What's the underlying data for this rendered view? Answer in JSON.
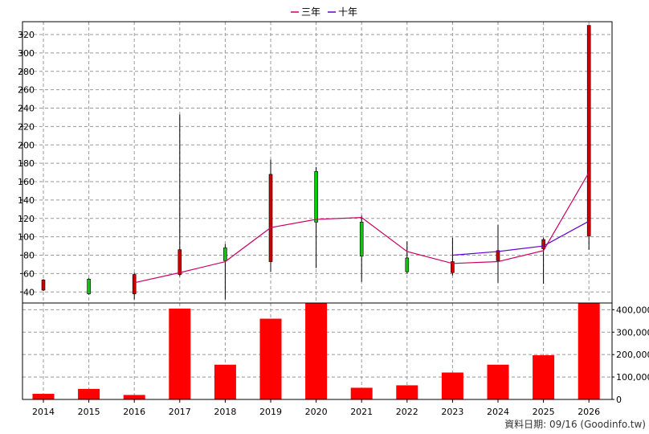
{
  "legend": [
    {
      "label": "三年",
      "color": "#cc0066"
    },
    {
      "label": "十年",
      "color": "#6600cc"
    }
  ],
  "footer": "資料日期: 09/16  (Goodinfo.tw)",
  "chart_data": [
    {
      "type": "candlestick",
      "position": "top",
      "x": [
        "2014",
        "2015",
        "2016",
        "2017",
        "2018",
        "2019",
        "2020",
        "2021",
        "2022",
        "2023",
        "2024",
        "2025",
        "2026"
      ],
      "ohlc": [
        {
          "open": 42,
          "high": 54,
          "low": 41,
          "close": 53,
          "color": "#cc0000"
        },
        {
          "open": 54,
          "high": 55,
          "low": 37,
          "close": 38,
          "color": "#00cc00"
        },
        {
          "open": 38,
          "high": 61,
          "low": 32,
          "close": 59,
          "color": "#cc0000"
        },
        {
          "open": 59,
          "high": 233,
          "low": 57,
          "close": 86,
          "color": "#cc0000"
        },
        {
          "open": 88,
          "high": 92,
          "low": 32,
          "close": 74,
          "color": "#00cc00"
        },
        {
          "open": 73,
          "high": 184,
          "low": 62,
          "close": 168,
          "color": "#cc0000"
        },
        {
          "open": 171,
          "high": 176,
          "low": 66,
          "close": 116,
          "color": "#00cc00"
        },
        {
          "open": 116,
          "high": 123,
          "low": 51,
          "close": 79,
          "color": "#00cc00"
        },
        {
          "open": 77,
          "high": 95,
          "low": 60,
          "close": 62,
          "color": "#00cc00"
        },
        {
          "open": 61,
          "high": 99,
          "low": 58,
          "close": 73,
          "color": "#cc0000"
        },
        {
          "open": 74,
          "high": 113,
          "low": 50,
          "close": 85,
          "color": "#cc0000"
        },
        {
          "open": 87,
          "high": 99,
          "low": 49,
          "close": 97,
          "color": "#cc0000"
        },
        {
          "open": 101,
          "high": 330,
          "low": 86,
          "close": 330,
          "color": "#cc0000"
        }
      ],
      "series": [
        {
          "name": "三年",
          "color": "#cc0066",
          "x": [
            "2016",
            "2017",
            "2018",
            "2019",
            "2020",
            "2021",
            "2022",
            "2023",
            "2024",
            "2025",
            "2026"
          ],
          "values": [
            50,
            61,
            73,
            110,
            119,
            121,
            84,
            71,
            73,
            85,
            170
          ]
        },
        {
          "name": "十年",
          "color": "#6600cc",
          "x": [
            "2023",
            "2024",
            "2025",
            "2026"
          ],
          "values": [
            80,
            84,
            90,
            117
          ]
        }
      ],
      "yticks": [
        40,
        60,
        80,
        100,
        120,
        140,
        160,
        180,
        200,
        220,
        240,
        260,
        280,
        300,
        320
      ],
      "ylim": [
        28,
        334
      ],
      "grid": true
    },
    {
      "type": "bar",
      "position": "bottom",
      "categories": [
        "2014",
        "2015",
        "2016",
        "2017",
        "2018",
        "2019",
        "2020",
        "2021",
        "2022",
        "2023",
        "2024",
        "2025",
        "2026"
      ],
      "values": [
        25000,
        47000,
        20000,
        405000,
        155000,
        360000,
        430000,
        52000,
        63000,
        120000,
        155000,
        197000,
        430000
      ],
      "color": "#ff0000",
      "yticks": [
        "0",
        "100,000",
        "200,000",
        "300,000",
        "400,000"
      ],
      "ytick_values": [
        0,
        100000,
        200000,
        300000,
        400000
      ],
      "ylim": [
        0,
        430000
      ],
      "grid": true
    }
  ]
}
